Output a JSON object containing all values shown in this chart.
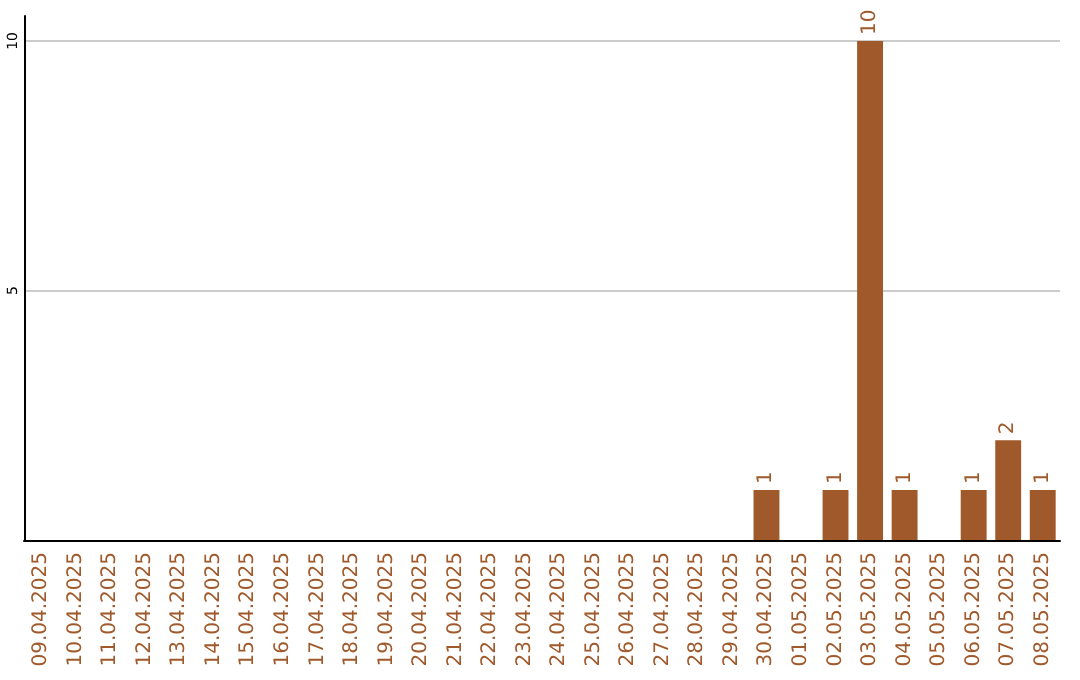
{
  "chart_data": {
    "type": "bar",
    "categories": [
      "09.04.2025",
      "10.04.2025",
      "11.04.2025",
      "12.04.2025",
      "13.04.2025",
      "14.04.2025",
      "15.04.2025",
      "16.04.2025",
      "17.04.2025",
      "18.04.2025",
      "19.04.2025",
      "20.04.2025",
      "21.04.2025",
      "22.04.2025",
      "23.04.2025",
      "24.04.2025",
      "25.04.2025",
      "26.04.2025",
      "27.04.2025",
      "28.04.2025",
      "29.04.2025",
      "30.04.2025",
      "01.05.2025",
      "02.05.2025",
      "03.05.2025",
      "04.05.2025",
      "05.05.2025",
      "06.05.2025",
      "07.05.2025",
      "08.05.2025"
    ],
    "values": [
      0,
      0,
      0,
      0,
      0,
      0,
      0,
      0,
      0,
      0,
      0,
      0,
      0,
      0,
      0,
      0,
      0,
      0,
      0,
      0,
      0,
      1,
      0,
      1,
      10,
      1,
      0,
      1,
      2,
      1
    ],
    "value_labels": [
      null,
      null,
      null,
      null,
      null,
      null,
      null,
      null,
      null,
      null,
      null,
      null,
      null,
      null,
      null,
      null,
      null,
      null,
      null,
      null,
      null,
      "1",
      null,
      "1",
      "10",
      "1",
      null,
      "1",
      "2",
      "1"
    ],
    "color": "#a0592b",
    "ylim": [
      0,
      10.5
    ],
    "yticks": [
      {
        "value": 0,
        "label": null
      },
      5,
      10
    ],
    "grid": "y"
  }
}
